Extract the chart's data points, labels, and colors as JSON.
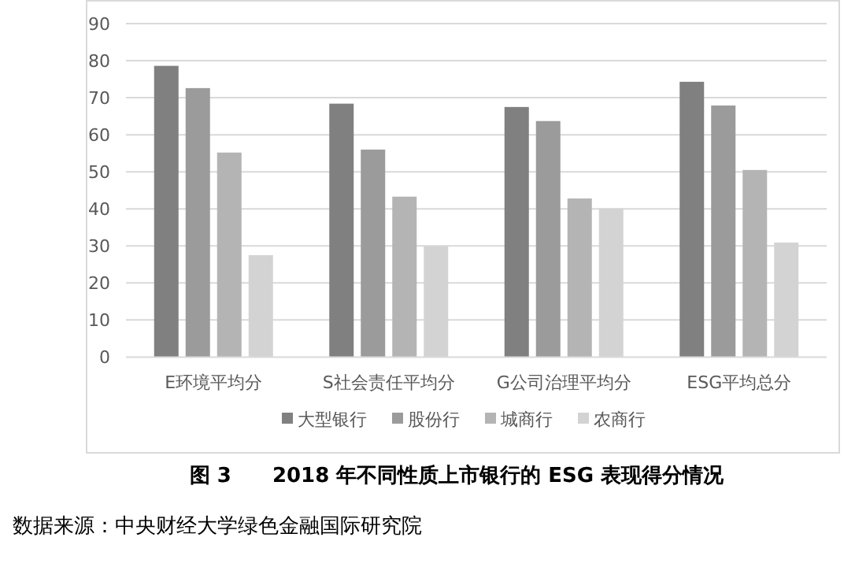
{
  "chart_data": {
    "type": "bar",
    "title": "图 3　　2018 年不同性质上市银行的 ESG 表现得分情况",
    "annotations": [
      "数据来源：中央财经大学绿色金融国际研究院"
    ],
    "categories": [
      "E环境平均分",
      "S社会责任平均分",
      "G公司治理平均分",
      "ESG平均总分"
    ],
    "series": [
      {
        "name": "大型银行",
        "color": "#808080",
        "values": [
          78.6,
          68.4,
          67.5,
          74.3
        ]
      },
      {
        "name": "股份行",
        "color": "#9b9b9b",
        "values": [
          72.6,
          56.0,
          63.7,
          67.9
        ]
      },
      {
        "name": "城商行",
        "color": "#b4b4b4",
        "values": [
          55.2,
          43.3,
          42.8,
          50.5
        ]
      },
      {
        "name": "农商行",
        "color": "#d3d3d3",
        "values": [
          27.5,
          29.9,
          40.1,
          30.9
        ]
      }
    ],
    "ylim": [
      0,
      90
    ],
    "yticks": [
      0,
      10,
      20,
      30,
      40,
      50,
      60,
      70,
      80,
      90
    ],
    "grid": "y",
    "legend": "bottom"
  }
}
